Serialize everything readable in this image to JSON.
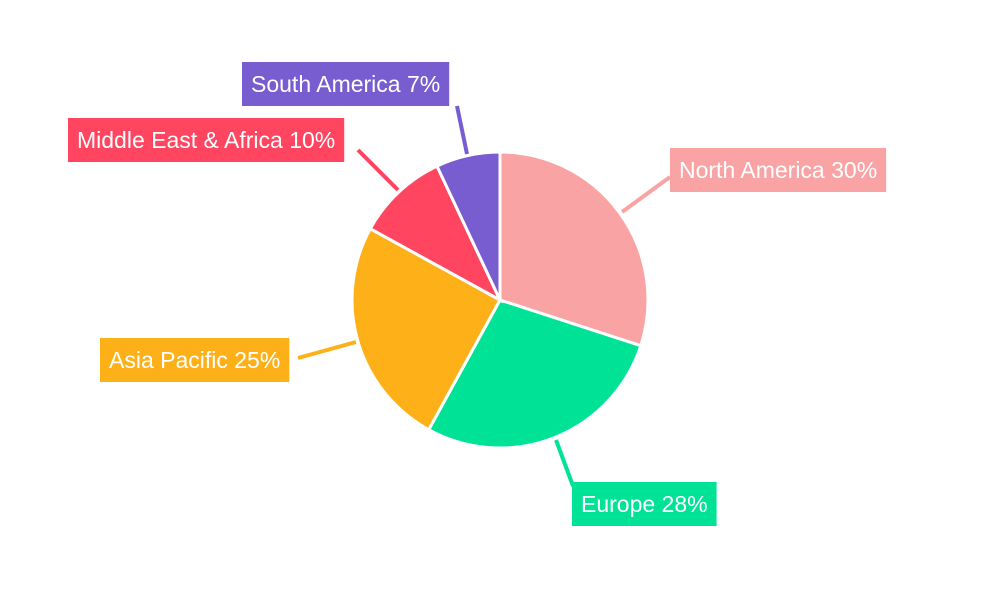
{
  "chart_data": {
    "type": "pie",
    "title": "",
    "start_angle_deg": 0,
    "direction": "clockwise",
    "legend": "none",
    "slices": [
      {
        "label": "North America",
        "value": 30,
        "text": "North America 30%",
        "color": "#F9A3A4"
      },
      {
        "label": "Europe",
        "value": 28,
        "text": "Europe 28%",
        "color": "#00E396"
      },
      {
        "label": "Asia Pacific",
        "value": 25,
        "text": "Asia Pacific 25%",
        "color": "#FEB019"
      },
      {
        "label": "Middle East & Africa",
        "value": 10,
        "text": "Middle East & Africa 10%",
        "color": "#FF4560"
      },
      {
        "label": "South America",
        "value": 7,
        "text": "South America 7%",
        "color": "#775DD0"
      }
    ]
  }
}
